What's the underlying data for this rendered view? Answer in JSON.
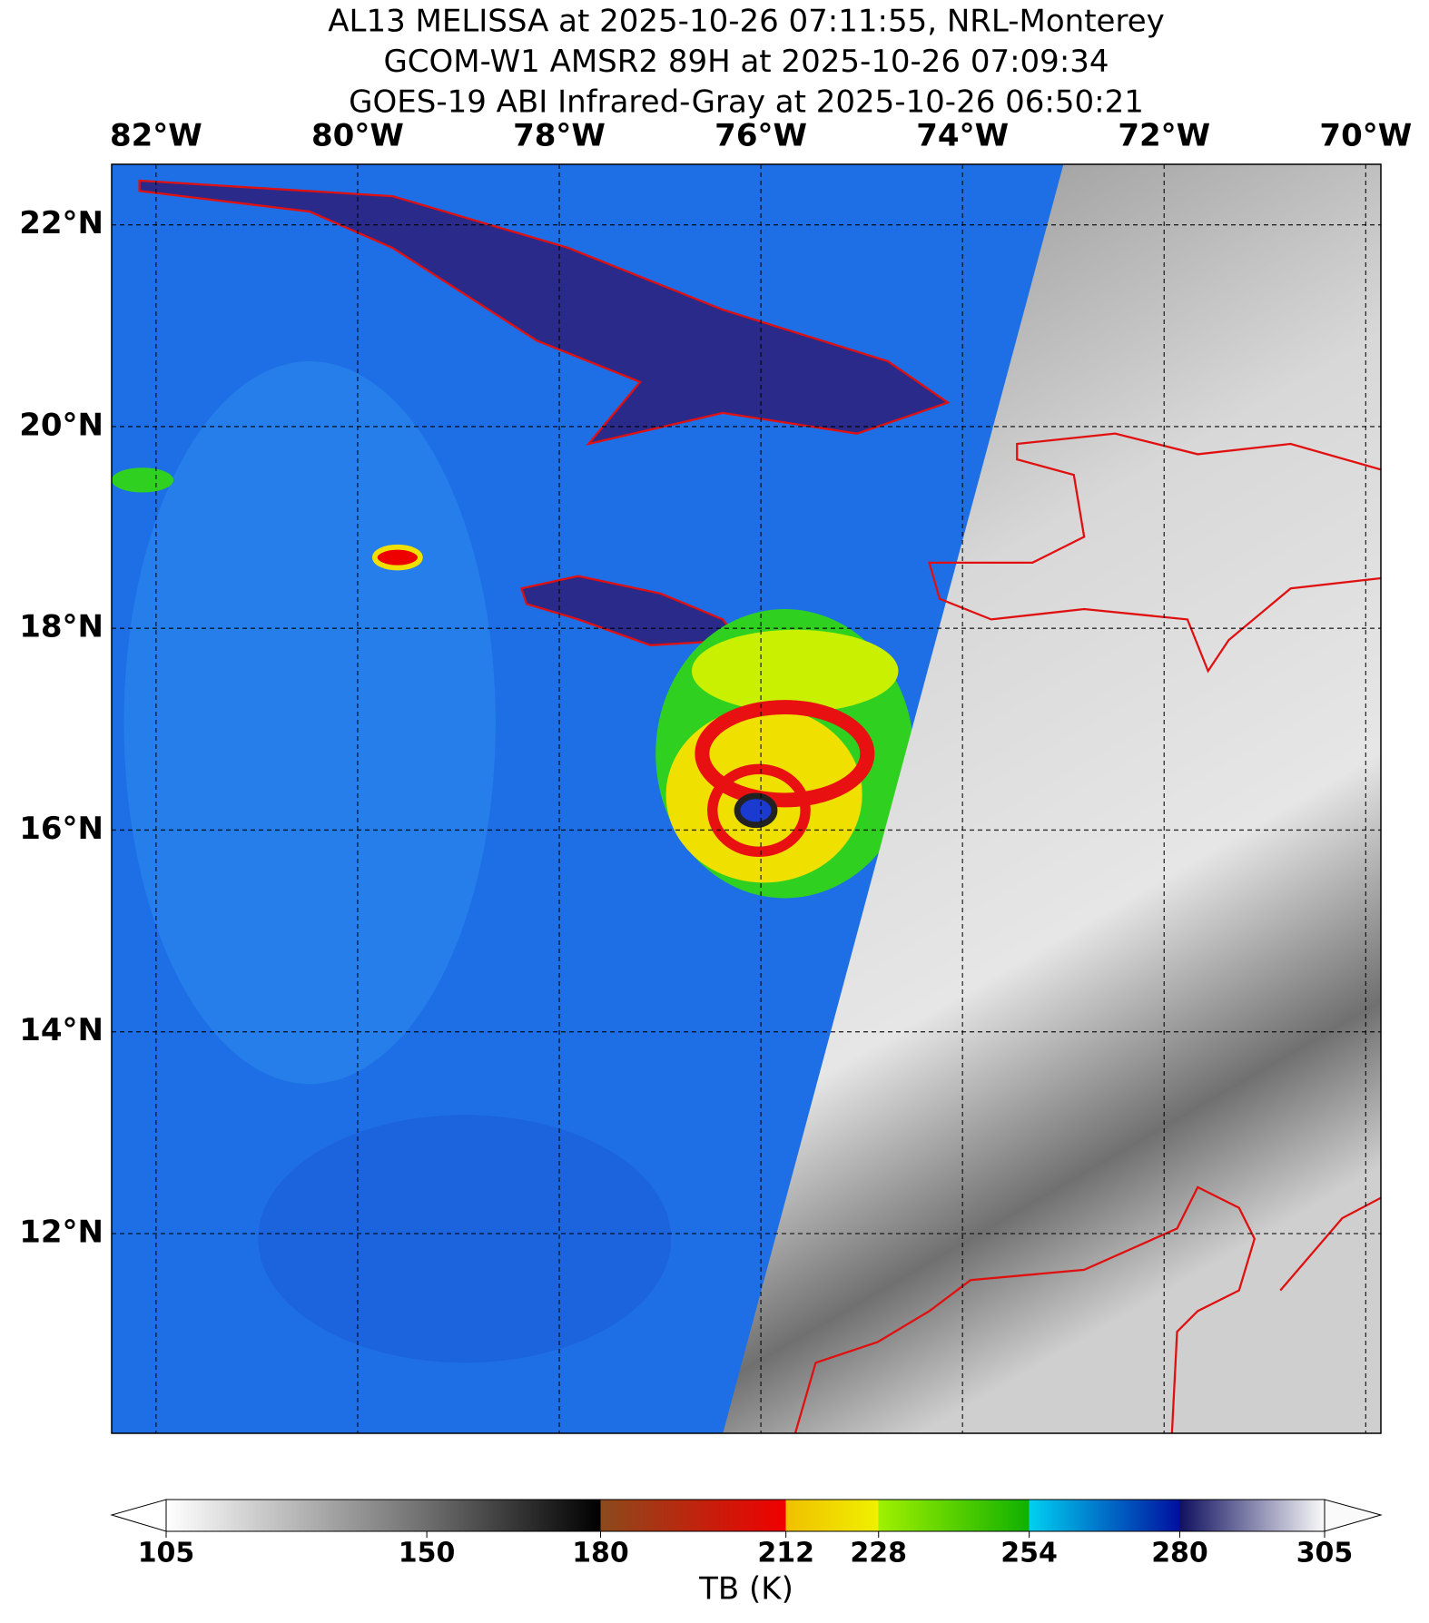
{
  "header": {
    "title_lines": [
      "AL13 MELISSA at 2025-10-26 07:11:55, NRL-Monterey",
      "GCOM-W1 AMSR2 89H at 2025-10-26 07:09:34",
      "GOES-19 ABI Infrared-Gray at 2025-10-26 06:50:21"
    ]
  },
  "map": {
    "xlim": [
      -82.44,
      -69.85
    ],
    "ylim": [
      10.02,
      22.6
    ],
    "xticks": [
      {
        "value": -82,
        "label": "82°W"
      },
      {
        "value": -80,
        "label": "80°W"
      },
      {
        "value": -78,
        "label": "78°W"
      },
      {
        "value": -76,
        "label": "76°W"
      },
      {
        "value": -74,
        "label": "74°W"
      },
      {
        "value": -72,
        "label": "72°W"
      },
      {
        "value": -70,
        "label": "70°W"
      }
    ],
    "yticks": [
      {
        "value": 22,
        "label": "22°N"
      },
      {
        "value": 20,
        "label": "20°N"
      },
      {
        "value": 18,
        "label": "18°N"
      },
      {
        "value": 16,
        "label": "16°N"
      },
      {
        "value": 14,
        "label": "14°N"
      },
      {
        "value": 12,
        "label": "12°N"
      }
    ]
  },
  "colorbar": {
    "range": [
      105,
      305
    ],
    "ticks": [
      105,
      150,
      180,
      212,
      228,
      254,
      280,
      305
    ],
    "label": "TB (K)"
  }
}
